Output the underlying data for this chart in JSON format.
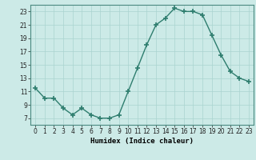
{
  "x": [
    0,
    1,
    2,
    3,
    4,
    5,
    6,
    7,
    8,
    9,
    10,
    11,
    12,
    13,
    14,
    15,
    16,
    17,
    18,
    19,
    20,
    21,
    22,
    23
  ],
  "y": [
    11.5,
    10.0,
    10.0,
    8.5,
    7.5,
    8.5,
    7.5,
    7.0,
    7.0,
    7.5,
    11.0,
    14.5,
    18.0,
    21.0,
    22.0,
    23.5,
    23.0,
    23.0,
    22.5,
    19.5,
    16.5,
    14.0,
    13.0,
    12.5
  ],
  "xlabel": "Humidex (Indice chaleur)",
  "ylim": [
    6,
    24
  ],
  "xlim_min": -0.5,
  "xlim_max": 23.5,
  "yticks": [
    7,
    9,
    11,
    13,
    15,
    17,
    19,
    21,
    23
  ],
  "xticks": [
    0,
    1,
    2,
    3,
    4,
    5,
    6,
    7,
    8,
    9,
    10,
    11,
    12,
    13,
    14,
    15,
    16,
    17,
    18,
    19,
    20,
    21,
    22,
    23
  ],
  "line_color": "#2e7d6e",
  "marker": "+",
  "bg_color": "#cceae7",
  "grid_color": "#aad4d0",
  "axis_label_fontsize": 6.5,
  "tick_fontsize": 5.5
}
